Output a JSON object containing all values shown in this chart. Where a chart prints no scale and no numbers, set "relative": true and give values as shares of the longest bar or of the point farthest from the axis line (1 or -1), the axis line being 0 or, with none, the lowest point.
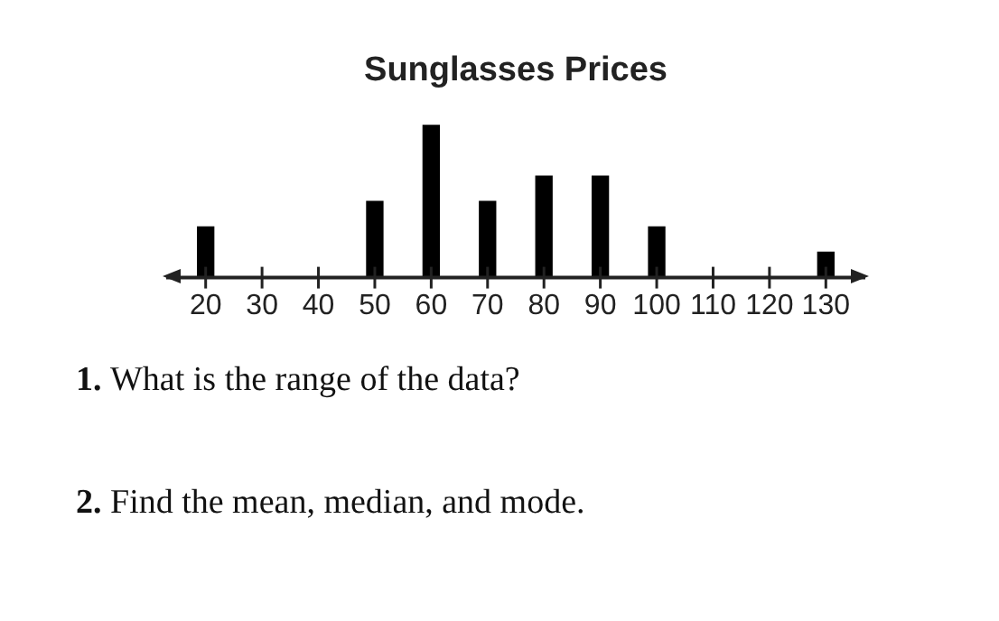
{
  "chart_data": {
    "type": "bar",
    "title": "Sunglasses Prices",
    "x": [
      20,
      50,
      60,
      70,
      80,
      90,
      100,
      130
    ],
    "values": [
      0.333,
      0.5,
      1,
      0.5,
      0.667,
      0.667,
      0.333,
      0.167
    ],
    "relative": true,
    "color": "#000000",
    "xlim": [
      13,
      137
    ],
    "xticks": [
      20,
      30,
      40,
      50,
      60,
      70,
      80,
      90,
      100,
      110,
      120,
      130
    ],
    "tick_labels": "x",
    "legend": false,
    "annotations": [
      "1. What is the range of the data?",
      "2. Find the mean, median, and mode."
    ]
  }
}
